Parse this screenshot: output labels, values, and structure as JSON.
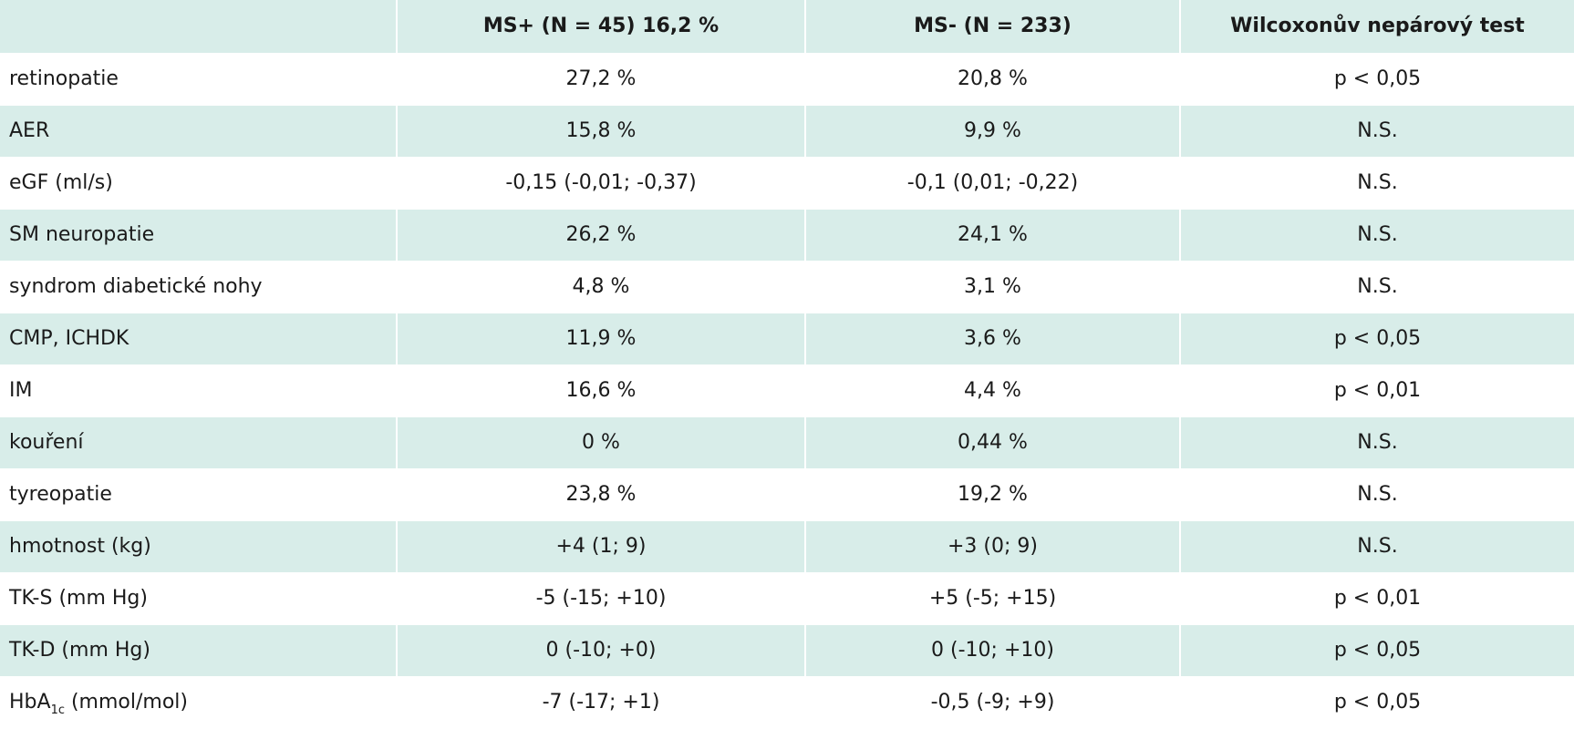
{
  "header": [
    "",
    "MS+ (N = 45) 16,2 %",
    "MS- (N = 233)",
    "Wilcoxonův nepárový test"
  ],
  "rows": [
    {
      "label": "retinopatie",
      "ms_plus": "27,2 %",
      "ms_minus": "20,8 %",
      "test": "p < 0,05"
    },
    {
      "label": "AER",
      "ms_plus": "15,8 %",
      "ms_minus": "9,9 %",
      "test": "N.S."
    },
    {
      "label": "eGF (ml/s)",
      "ms_plus": "-0,15 (-0,01; -0,37)",
      "ms_minus": "-0,1 (0,01; -0,22)",
      "test": "N.S."
    },
    {
      "label": "SM neuropatie",
      "ms_plus": "26,2 %",
      "ms_minus": "24,1 %",
      "test": "N.S."
    },
    {
      "label": "syndrom diabetické nohy",
      "ms_plus": "4,8 %",
      "ms_minus": "3,1 %",
      "test": "N.S."
    },
    {
      "label": "CMP, ICHDK",
      "ms_plus": "11,9 %",
      "ms_minus": "3,6 %",
      "test": "p < 0,05"
    },
    {
      "label": "IM",
      "ms_plus": "16,6 %",
      "ms_minus": "4,4 %",
      "test": "p < 0,01"
    },
    {
      "label": "kouření",
      "ms_plus": "0 %",
      "ms_minus": "0,44 %",
      "test": "N.S."
    },
    {
      "label": "tyreopatie",
      "ms_plus": "23,8 %",
      "ms_minus": "19,2 %",
      "test": "N.S."
    },
    {
      "label": "hmotnost (kg)",
      "ms_plus": "+4 (1; 9)",
      "ms_minus": "+3 (0; 9)",
      "test": "N.S."
    },
    {
      "label": "TK-S (mm Hg)",
      "ms_plus": "-5 (-15; +10)",
      "ms_minus": "+5 (-5; +15)",
      "test": "p < 0,01"
    },
    {
      "label": "TK-D (mm Hg)",
      "ms_plus": "0 (-10; +0)",
      "ms_minus": "0 (-10; +10)",
      "test": "p < 0,05"
    },
    {
      "label_main": "HbA",
      "label_sub": "1c",
      "label_rest": " (mmol/mol)",
      "ms_plus": "-7 (-17; +1)",
      "ms_minus": "-0,5 (-9; +9)",
      "test": "p < 0,05"
    }
  ],
  "colors": {
    "header_bg": "#d8ede9",
    "row_light": "#ffffff",
    "row_dark": "#d8ede9"
  }
}
